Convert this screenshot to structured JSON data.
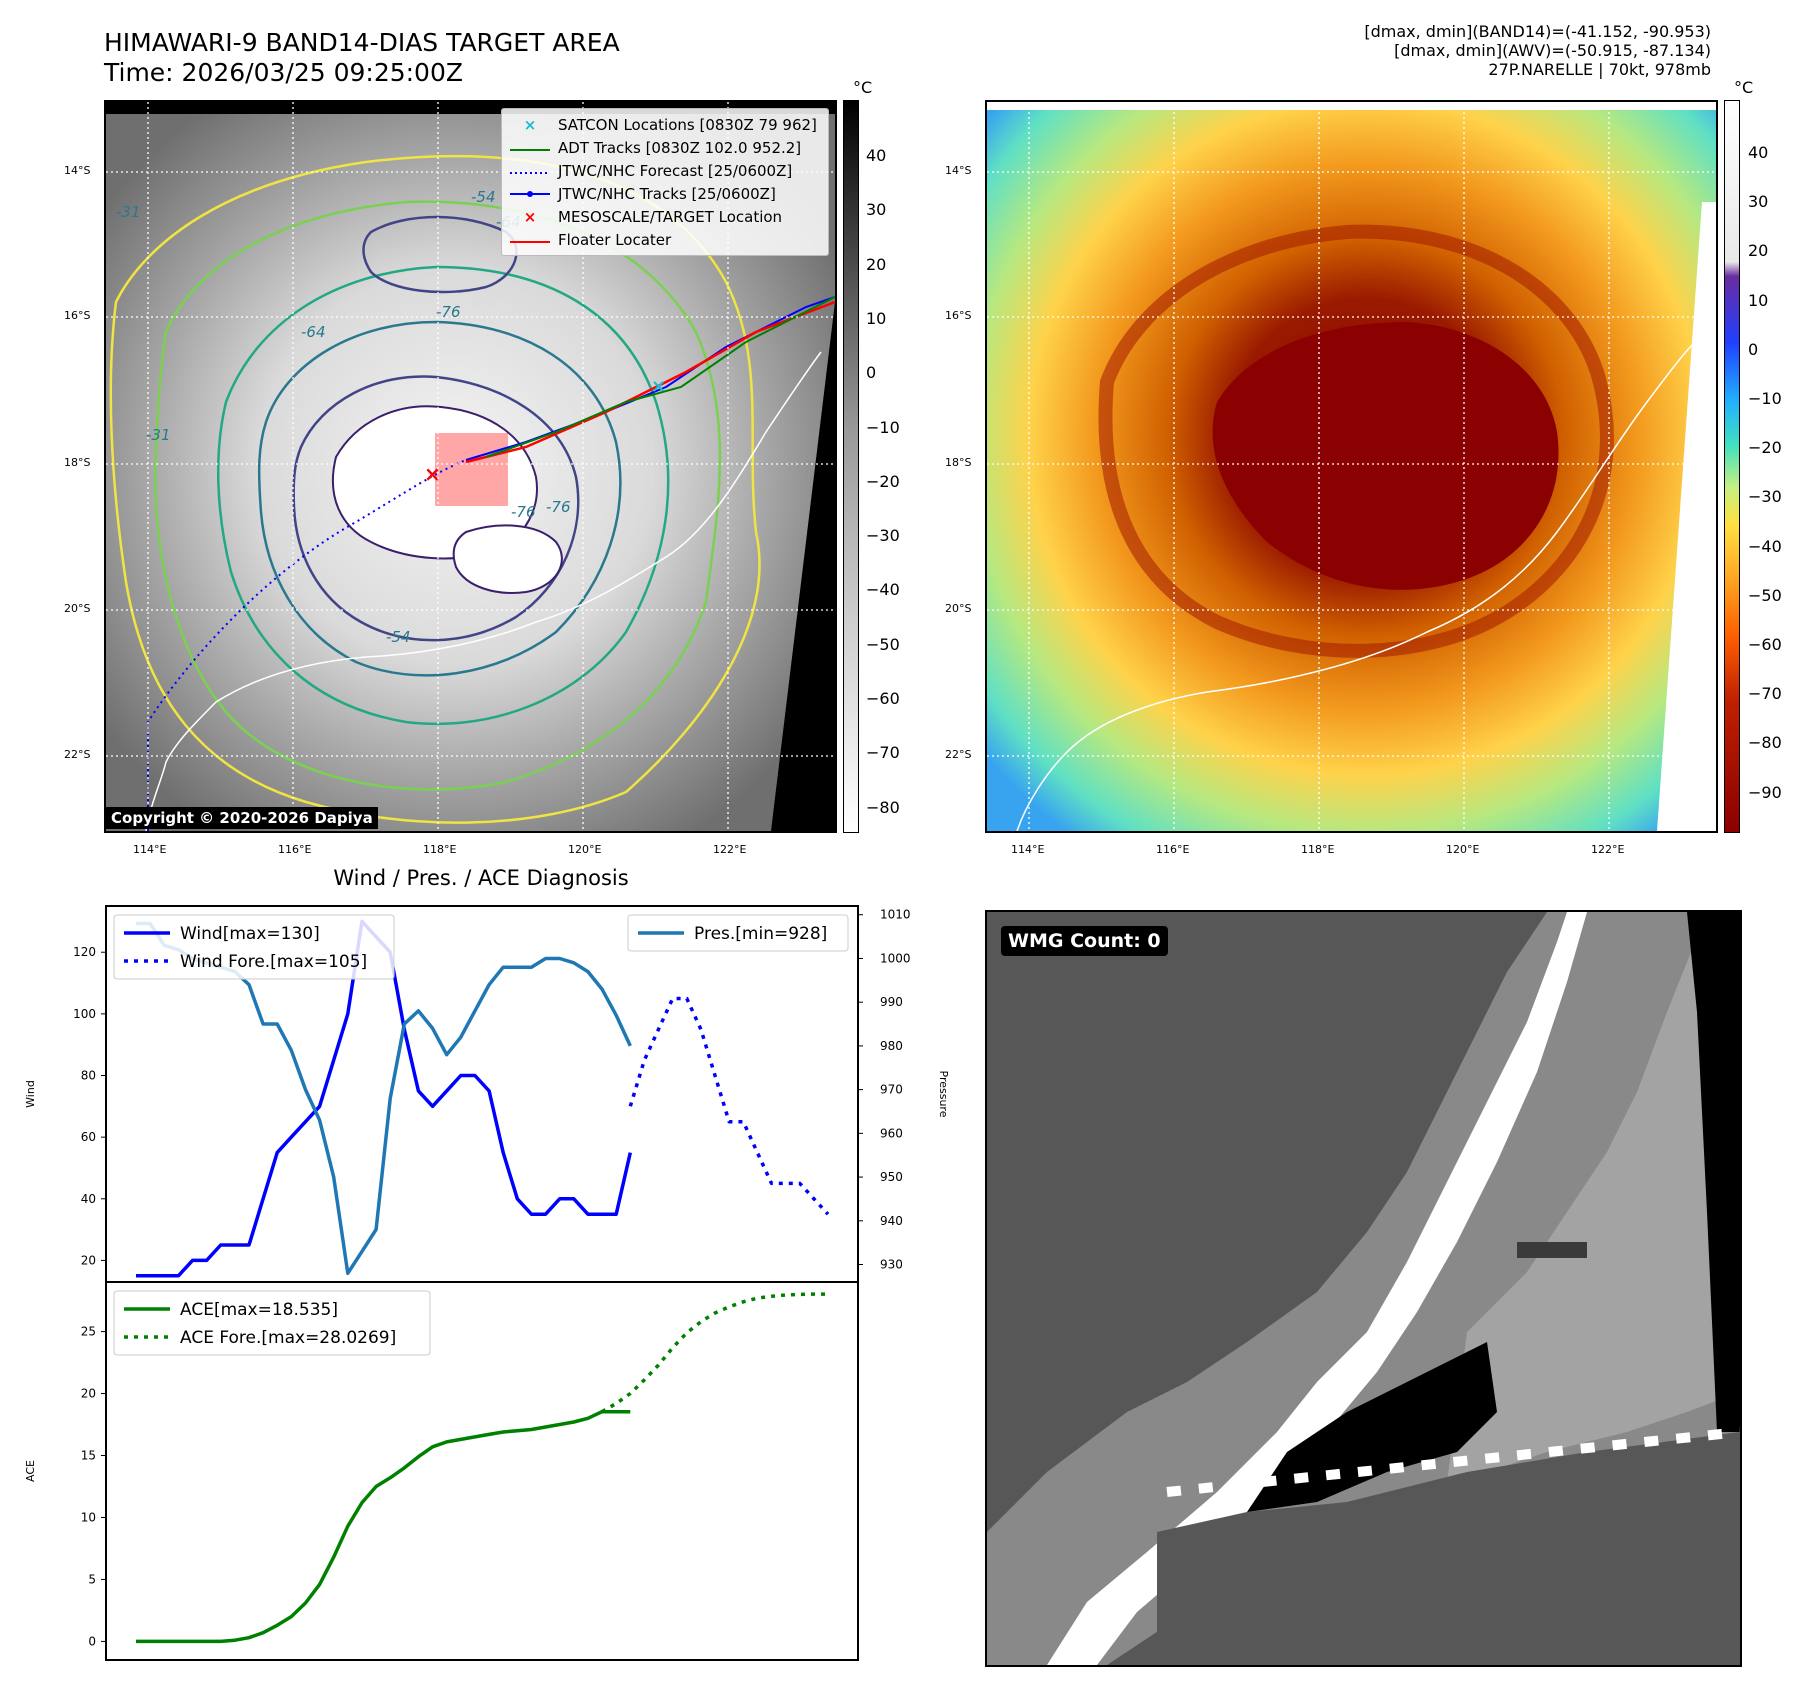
{
  "header": {
    "title_line1": "HIMAWARI-9 BAND14-DIAS TARGET AREA",
    "title_line2": "Time: 2026/03/25 09:25:00Z",
    "info_line1": "[dmax, dmin](BAND14)=(-41.152, -90.953)",
    "info_line2": "[dmax, dmin](AWV)=(-50.915, -87.134)",
    "info_line3": "27P.NARELLE | 70kt, 978mb"
  },
  "map_axes": {
    "lat_labels": [
      "14°S",
      "16°S",
      "18°S",
      "20°S",
      "22°S"
    ],
    "lon_labels": [
      "114°E",
      "116°E",
      "118°E",
      "120°E",
      "122°E"
    ]
  },
  "ir_panel": {
    "colorbar_unit": "°C",
    "colorbar_ticks": [
      "40",
      "30",
      "20",
      "10",
      "0",
      "−10",
      "−20",
      "−30",
      "−40",
      "−50",
      "−60",
      "−70",
      "−80"
    ],
    "contour_labels": [
      "-54",
      "-64",
      "-76",
      "-31",
      "-64",
      "-76",
      "-31",
      "-54",
      "-76"
    ],
    "copyright": "Copyright © 2020-2026 Dapiya",
    "legend": [
      {
        "marker": "×",
        "color": "#17becf",
        "label": "SATCON Locations [0830Z 79 962]"
      },
      {
        "marker": "line",
        "color": "#008000",
        "label": "ADT Tracks [0830Z 102.0 952.2]"
      },
      {
        "marker": "dotted",
        "color": "#0000ff",
        "label": "JTWC/NHC Forecast [25/0600Z]"
      },
      {
        "marker": "line-dot",
        "color": "#0000ff",
        "label": "JTWC/NHC Tracks [25/0600Z]"
      },
      {
        "marker": "×",
        "color": "#ff0000",
        "label": "MESOSCALE/TARGET Location"
      },
      {
        "marker": "line",
        "color": "#ff0000",
        "label": "Floater Locater"
      }
    ]
  },
  "wv_panel": {
    "colorbar_unit": "°C",
    "colorbar_ticks": [
      "40",
      "30",
      "20",
      "10",
      "0",
      "−10",
      "−20",
      "−30",
      "−40",
      "−50",
      "−60",
      "−70",
      "−80",
      "−90"
    ]
  },
  "wmg_panel": {
    "label": "WMG Count: 0"
  },
  "chart_data": [
    {
      "type": "line",
      "title": "Wind / Pres. / ACE Diagnosis",
      "ylabel": "Wind",
      "y2label": "Pressure",
      "ylim": [
        13,
        135
      ],
      "y2lim": [
        926,
        1012
      ],
      "yticks": [
        20,
        40,
        60,
        80,
        100,
        120
      ],
      "y2ticks": [
        930,
        940,
        950,
        960,
        970,
        980,
        990,
        1000,
        1010
      ],
      "x_count": 50,
      "series": [
        {
          "name": "Wind[max=130]",
          "color": "#0000ff",
          "style": "solid",
          "x": [
            0,
            1,
            2,
            3,
            4,
            5,
            6,
            7,
            8,
            9,
            10,
            11,
            12,
            13,
            14,
            15,
            16,
            17,
            18,
            19,
            20,
            21,
            22,
            23,
            24,
            25,
            26,
            27,
            28,
            29,
            30,
            31,
            32,
            33,
            34,
            35
          ],
          "values": [
            15,
            15,
            15,
            15,
            20,
            20,
            25,
            25,
            25,
            40,
            55,
            60,
            65,
            70,
            85,
            100,
            130,
            125,
            120,
            95,
            75,
            70,
            75,
            80,
            80,
            75,
            55,
            40,
            35,
            35,
            40,
            40,
            35,
            35,
            35,
            55
          ]
        },
        {
          "name": "Wind Fore.[max=105]",
          "color": "#0000ff",
          "style": "dotted",
          "x": [
            35,
            36,
            37,
            38,
            39,
            40,
            41,
            42,
            43,
            44,
            45,
            46,
            47,
            48,
            49
          ],
          "values": [
            70,
            85,
            95,
            105,
            105,
            95,
            80,
            65,
            65,
            55,
            45,
            45,
            45,
            40,
            35
          ]
        },
        {
          "name": "Pres.[min=928]",
          "color": "#1f77b4",
          "style": "solid",
          "axis": "right",
          "x": [
            0,
            1,
            2,
            3,
            4,
            5,
            6,
            7,
            8,
            9,
            10,
            11,
            12,
            13,
            14,
            15,
            16,
            17,
            18,
            19,
            20,
            21,
            22,
            23,
            24,
            25,
            26,
            27,
            28,
            29,
            30,
            31,
            32,
            33,
            34,
            35
          ],
          "values": [
            1008,
            1008,
            1003,
            1002,
            1000,
            999,
            998,
            997,
            994,
            985,
            985,
            979,
            970,
            963,
            950,
            928,
            933,
            938,
            968,
            985,
            988,
            984,
            978,
            982,
            988,
            994,
            998,
            998,
            998,
            1000,
            1000,
            999,
            997,
            993,
            987,
            980
          ]
        }
      ]
    },
    {
      "type": "line",
      "ylabel": "ACE",
      "ylim": [
        -1.5,
        29
      ],
      "yticks": [
        0,
        5,
        10,
        15,
        20,
        25
      ],
      "x_count": 50,
      "series": [
        {
          "name": "ACE[max=18.535]",
          "color": "#008000",
          "style": "solid",
          "x": [
            0,
            1,
            2,
            3,
            4,
            5,
            6,
            7,
            8,
            9,
            10,
            11,
            12,
            13,
            14,
            15,
            16,
            17,
            18,
            19,
            20,
            21,
            22,
            23,
            24,
            25,
            26,
            27,
            28,
            29,
            30,
            31,
            32,
            33,
            34,
            35
          ],
          "values": [
            0,
            0,
            0,
            0,
            0,
            0,
            0,
            0.1,
            0.3,
            0.7,
            1.3,
            2.0,
            3.1,
            4.6,
            6.8,
            9.3,
            11.2,
            12.5,
            13.2,
            14.0,
            14.9,
            15.7,
            16.1,
            16.3,
            16.5,
            16.7,
            16.9,
            17.0,
            17.1,
            17.3,
            17.5,
            17.7,
            18.0,
            18.535,
            18.535,
            18.535
          ]
        },
        {
          "name": "ACE Fore.[max=28.0269]",
          "color": "#008000",
          "style": "dotted",
          "x": [
            33,
            34,
            35,
            36,
            37,
            38,
            39,
            40,
            41,
            42,
            43,
            44,
            45,
            46,
            47,
            48,
            49
          ],
          "values": [
            18.535,
            19.2,
            20.0,
            21.1,
            22.3,
            23.7,
            24.9,
            25.8,
            26.5,
            27.0,
            27.4,
            27.7,
            27.85,
            27.95,
            28.0,
            28.02,
            28.0269
          ]
        }
      ]
    }
  ]
}
